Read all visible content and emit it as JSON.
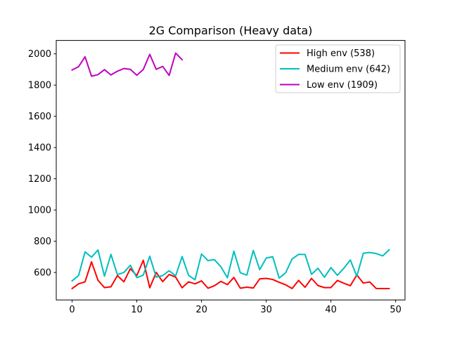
{
  "chart_data": {
    "type": "line",
    "title": "2G Comparison (Heavy data)",
    "xlabel": "",
    "ylabel": "",
    "xlim": [
      -2.45,
      51.45
    ],
    "ylim": [
      424,
      2086
    ],
    "xticks": [
      0,
      10,
      20,
      30,
      40,
      50
    ],
    "yticks": [
      600,
      800,
      1000,
      1200,
      1400,
      1600,
      1800,
      2000
    ],
    "grid": false,
    "legend_position": "top-right",
    "series": [
      {
        "name": "High env (538)",
        "color": "#ff0000",
        "x": [
          0,
          1,
          2,
          3,
          4,
          5,
          6,
          7,
          8,
          9,
          10,
          11,
          12,
          13,
          14,
          15,
          16,
          17,
          18,
          19,
          20,
          21,
          22,
          23,
          24,
          25,
          26,
          27,
          28,
          29,
          30,
          31,
          32,
          33,
          34,
          35,
          36,
          37,
          38,
          39,
          40,
          41,
          42,
          43,
          44,
          45,
          46,
          47,
          48,
          49
        ],
        "values": [
          497,
          527,
          540,
          668,
          550,
          503,
          508,
          580,
          540,
          624,
          580,
          678,
          502,
          600,
          541,
          587,
          570,
          502,
          540,
          527,
          546,
          499,
          515,
          543,
          522,
          568,
          499,
          506,
          500,
          559,
          562,
          555,
          537,
          521,
          497,
          549,
          505,
          562,
          516,
          503,
          503,
          549,
          531,
          515,
          584,
          532,
          539,
          497,
          497,
          497
        ]
      },
      {
        "name": "Medium env (642)",
        "color": "#00bfbf",
        "x": [
          0,
          1,
          2,
          3,
          4,
          5,
          6,
          7,
          8,
          9,
          10,
          11,
          12,
          13,
          14,
          15,
          16,
          17,
          18,
          19,
          20,
          21,
          22,
          23,
          24,
          25,
          26,
          27,
          28,
          29,
          30,
          31,
          32,
          33,
          34,
          35,
          36,
          37,
          38,
          39,
          40,
          41,
          42,
          43,
          44,
          45,
          46,
          47,
          48,
          49
        ],
        "values": [
          546,
          580,
          732,
          698,
          744,
          576,
          716,
          586,
          600,
          646,
          567,
          583,
          704,
          570,
          580,
          611,
          578,
          702,
          582,
          553,
          718,
          676,
          682,
          636,
          566,
          736,
          598,
          583,
          741,
          618,
          692,
          701,
          564,
          598,
          686,
          716,
          715,
          588,
          627,
          569,
          631,
          582,
          627,
          680,
          575,
          723,
          728,
          721,
          706,
          745
        ]
      },
      {
        "name": "Low env (1909)",
        "color": "#bf00bf",
        "x": [
          0,
          1,
          2,
          3,
          4,
          5,
          6,
          7,
          8,
          9,
          10,
          11,
          12,
          13,
          14,
          15,
          16,
          17
        ],
        "values": [
          1897,
          1918,
          1981,
          1857,
          1867,
          1899,
          1865,
          1889,
          1906,
          1901,
          1863,
          1900,
          1997,
          1901,
          1920,
          1862,
          2005,
          1963
        ]
      }
    ]
  }
}
